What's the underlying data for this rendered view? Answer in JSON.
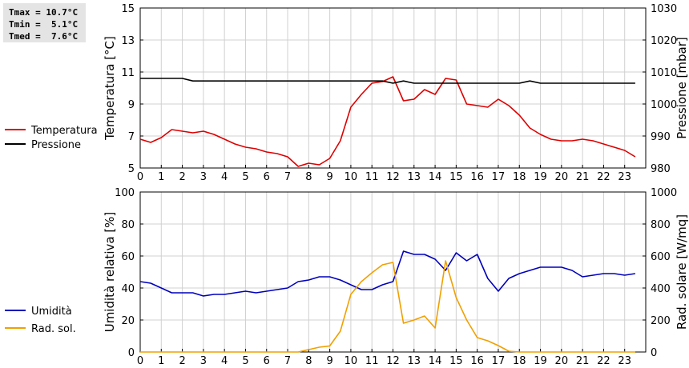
{
  "stats": {
    "lines": [
      "Tmax = 10.7°C",
      "Tmin =  5.1°C",
      "Tmed =  7.6°C"
    ]
  },
  "chart_data": [
    {
      "type": "line",
      "x_ticks": [
        0,
        1,
        2,
        3,
        4,
        5,
        6,
        7,
        8,
        9,
        10,
        11,
        12,
        13,
        14,
        15,
        16,
        17,
        18,
        19,
        20,
        21,
        22,
        23
      ],
      "xlim": [
        0,
        24
      ],
      "grid": true,
      "legend": "left",
      "ylabel": "Temperatura [°C]",
      "ylim": [
        5,
        15
      ],
      "y_ticks": [
        5,
        7,
        9,
        11,
        13,
        15
      ],
      "y2label": "Pressione [mbar]",
      "y2lim": [
        980,
        1030
      ],
      "y2_ticks": [
        980,
        990,
        1000,
        1010,
        1020,
        1030
      ],
      "series": [
        {
          "name": "Temperatura",
          "axis": "left",
          "color": "#dd0000",
          "points": [
            [
              0,
              6.8
            ],
            [
              0.5,
              6.6
            ],
            [
              1,
              6.9
            ],
            [
              1.5,
              7.4
            ],
            [
              2,
              7.3
            ],
            [
              2.5,
              7.2
            ],
            [
              3,
              7.3
            ],
            [
              3.5,
              7.1
            ],
            [
              4,
              6.8
            ],
            [
              4.5,
              6.5
            ],
            [
              5,
              6.3
            ],
            [
              5.5,
              6.2
            ],
            [
              6,
              6.0
            ],
            [
              6.5,
              5.9
            ],
            [
              7,
              5.7
            ],
            [
              7.5,
              5.1
            ],
            [
              8,
              5.3
            ],
            [
              8.5,
              5.2
            ],
            [
              9,
              5.6
            ],
            [
              9.5,
              6.7
            ],
            [
              10,
              8.8
            ],
            [
              10.5,
              9.6
            ],
            [
              11,
              10.3
            ],
            [
              11.5,
              10.4
            ],
            [
              12,
              10.7
            ],
            [
              12.5,
              9.2
            ],
            [
              13,
              9.3
            ],
            [
              13.5,
              9.9
            ],
            [
              14,
              9.6
            ],
            [
              14.5,
              10.6
            ],
            [
              15,
              10.5
            ],
            [
              15.5,
              9.0
            ],
            [
              16,
              8.9
            ],
            [
              16.5,
              8.8
            ],
            [
              17,
              9.3
            ],
            [
              17.5,
              8.9
            ],
            [
              18,
              8.3
            ],
            [
              18.5,
              7.5
            ],
            [
              19,
              7.1
            ],
            [
              19.5,
              6.8
            ],
            [
              20,
              6.7
            ],
            [
              20.5,
              6.7
            ],
            [
              21,
              6.8
            ],
            [
              21.5,
              6.7
            ],
            [
              22,
              6.5
            ],
            [
              22.5,
              6.3
            ],
            [
              23,
              6.1
            ],
            [
              23.5,
              5.7
            ]
          ]
        },
        {
          "name": "Pressione",
          "axis": "right",
          "color": "#000000",
          "points": [
            [
              0,
              1008
            ],
            [
              1,
              1008
            ],
            [
              2,
              1008
            ],
            [
              2.5,
              1007.2
            ],
            [
              3,
              1007.2
            ],
            [
              10,
              1007.2
            ],
            [
              11,
              1007.2
            ],
            [
              11.5,
              1007.2
            ],
            [
              12,
              1006.5
            ],
            [
              12.5,
              1007.2
            ],
            [
              13,
              1006.5
            ],
            [
              18,
              1006.5
            ],
            [
              18.5,
              1007.2
            ],
            [
              19,
              1006.5
            ],
            [
              23.5,
              1006.5
            ]
          ]
        }
      ]
    },
    {
      "type": "line",
      "x_ticks": [
        0,
        1,
        2,
        3,
        4,
        5,
        6,
        7,
        8,
        9,
        10,
        11,
        12,
        13,
        14,
        15,
        16,
        17,
        18,
        19,
        20,
        21,
        22,
        23
      ],
      "xlim": [
        0,
        24
      ],
      "grid": true,
      "legend": "left",
      "ylabel": "Umidità relativa [%]",
      "ylim": [
        0,
        100
      ],
      "y_ticks": [
        0,
        20,
        40,
        60,
        80,
        100
      ],
      "y2label": "Rad. solare [W/mq]",
      "y2lim": [
        0,
        1000
      ],
      "y2_ticks": [
        0,
        200,
        400,
        600,
        800,
        1000
      ],
      "series": [
        {
          "name": "Umidità",
          "axis": "left",
          "color": "#0000bb",
          "points": [
            [
              0,
              44
            ],
            [
              0.5,
              43
            ],
            [
              1,
              40
            ],
            [
              1.5,
              37
            ],
            [
              2,
              37
            ],
            [
              2.5,
              37
            ],
            [
              3,
              35
            ],
            [
              3.5,
              36
            ],
            [
              4,
              36
            ],
            [
              4.5,
              37
            ],
            [
              5,
              38
            ],
            [
              5.5,
              37
            ],
            [
              6,
              38
            ],
            [
              6.5,
              39
            ],
            [
              7,
              40
            ],
            [
              7.5,
              44
            ],
            [
              8,
              45
            ],
            [
              8.5,
              47
            ],
            [
              9,
              47
            ],
            [
              9.5,
              45
            ],
            [
              10,
              42
            ],
            [
              10.5,
              39
            ],
            [
              11,
              39
            ],
            [
              11.5,
              42
            ],
            [
              12,
              44
            ],
            [
              12.5,
              63
            ],
            [
              13,
              61
            ],
            [
              13.5,
              61
            ],
            [
              14,
              58
            ],
            [
              14.5,
              51
            ],
            [
              15,
              62
            ],
            [
              15.5,
              57
            ],
            [
              16,
              61
            ],
            [
              16.5,
              46
            ],
            [
              17,
              38
            ],
            [
              17.5,
              46
            ],
            [
              18,
              49
            ],
            [
              18.5,
              51
            ],
            [
              19,
              53
            ],
            [
              19.5,
              53
            ],
            [
              20,
              53
            ],
            [
              20.5,
              51
            ],
            [
              21,
              47
            ],
            [
              21.5,
              48
            ],
            [
              22,
              49
            ],
            [
              22.5,
              49
            ],
            [
              23,
              48
            ],
            [
              23.5,
              49
            ]
          ]
        },
        {
          "name": "Rad. sol.",
          "axis": "right",
          "color": "#f0a000",
          "points": [
            [
              0,
              0
            ],
            [
              7.5,
              0
            ],
            [
              8,
              15
            ],
            [
              8.5,
              30
            ],
            [
              9,
              38
            ],
            [
              9.5,
              130
            ],
            [
              10,
              360
            ],
            [
              10.5,
              440
            ],
            [
              11,
              495
            ],
            [
              11.5,
              545
            ],
            [
              12,
              560
            ],
            [
              12.5,
              180
            ],
            [
              13,
              200
            ],
            [
              13.5,
              225
            ],
            [
              14,
              150
            ],
            [
              14.5,
              570
            ],
            [
              15,
              340
            ],
            [
              15.5,
              200
            ],
            [
              16,
              90
            ],
            [
              16.5,
              70
            ],
            [
              17,
              40
            ],
            [
              17.5,
              5
            ],
            [
              18,
              0
            ],
            [
              23.5,
              0
            ]
          ]
        }
      ]
    }
  ]
}
